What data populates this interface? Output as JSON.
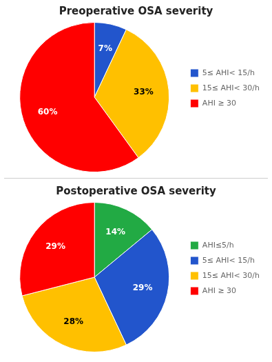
{
  "chart_data": [
    {
      "type": "pie",
      "title": "Preoperative OSA severity",
      "categories": [
        "5≤ AHI< 15/h",
        "15≤ AHI< 30/h",
        "AHI ≥ 30"
      ],
      "values": [
        7,
        33,
        60
      ],
      "value_labels": [
        "7%",
        "33%",
        "60%"
      ],
      "colors": [
        "#2255CC",
        "#FFC000",
        "#FF0000"
      ],
      "data_labels": true,
      "legend": "right"
    },
    {
      "type": "pie",
      "title": "Postoperative OSA severity",
      "categories": [
        "AHI≤5/h",
        "5≤ AHI< 15/h",
        "15≤ AHI< 30/h",
        "AHI ≥ 30"
      ],
      "values": [
        14,
        29,
        28,
        29
      ],
      "value_labels": [
        "14%",
        "29%",
        "28%",
        "29%"
      ],
      "colors": [
        "#22AA44",
        "#2255CC",
        "#FFC000",
        "#FF0000"
      ],
      "data_labels": true,
      "legend": "right"
    }
  ]
}
